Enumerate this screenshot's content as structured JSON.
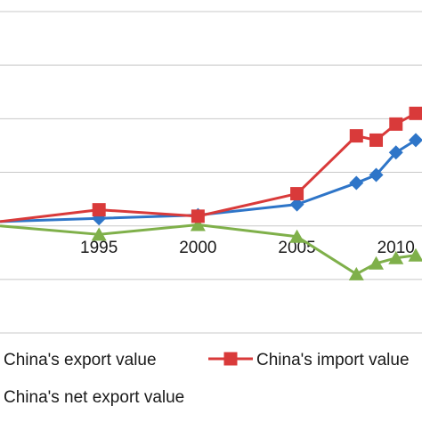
{
  "chart_data": {
    "type": "line",
    "x": [
      1990,
      1995,
      2000,
      2005,
      2008,
      2009,
      2010,
      2011
    ],
    "x_ticks": [
      "1995",
      "2000",
      "2005",
      "2010"
    ],
    "series": [
      {
        "name": "China's export value",
        "color": "#2e75c8",
        "marker": "diamond",
        "values": [
          0.08,
          0.14,
          0.2,
          0.4,
          0.8,
          0.95,
          1.37,
          1.6
        ]
      },
      {
        "name": "China's import value",
        "color": "#d93a3a",
        "marker": "square",
        "values": [
          0.08,
          0.3,
          0.18,
          0.6,
          1.68,
          1.6,
          1.9,
          2.1
        ]
      },
      {
        "name": "China's net export value",
        "color": "#7fb04a",
        "marker": "triangle",
        "values": [
          0.0,
          -0.16,
          0.02,
          -0.2,
          -0.9,
          -0.7,
          -0.6,
          -0.55
        ]
      }
    ],
    "ylim": [
      -1.8,
      4.0
    ],
    "grid": true,
    "legend_position": "bottom"
  }
}
